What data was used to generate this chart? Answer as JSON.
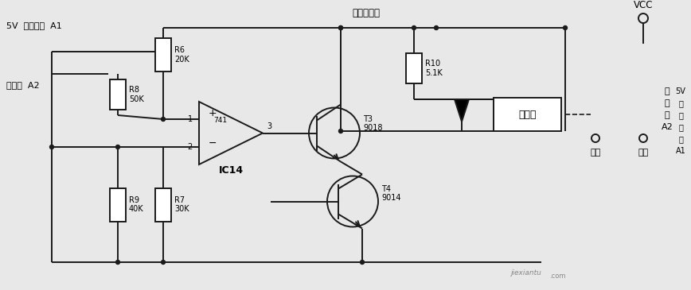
{
  "bg_color": "#e8e8e8",
  "line_color": "#1a1a1a",
  "fig_width": 8.68,
  "fig_height": 3.65,
  "labels": {
    "5v_dc": "5V  直流电源  A1",
    "battery": "蓄电池  A2",
    "battery_supply": "蓄电池供电",
    "r6": "R6\n20K",
    "r7": "R7\n30K",
    "r8": "R8\n50K",
    "r9": "R9\n40K",
    "r10": "R10\n5.1K",
    "ic14": "IC14",
    "t3": "T3\n9018",
    "t4": "T4\n9014",
    "relay": "继电器",
    "normally_open": "常开",
    "normally_closed": "常闭",
    "vcc": "VCC",
    "pin1": "1",
    "pin2": "2",
    "pin3": "3",
    "plus": "+",
    "minus": "−",
    "num741": "741",
    "side_label_batt": "蓄\n电\n池\nA2",
    "side_label_dc": "5V\n直\n流\n电\n源\nA1"
  }
}
